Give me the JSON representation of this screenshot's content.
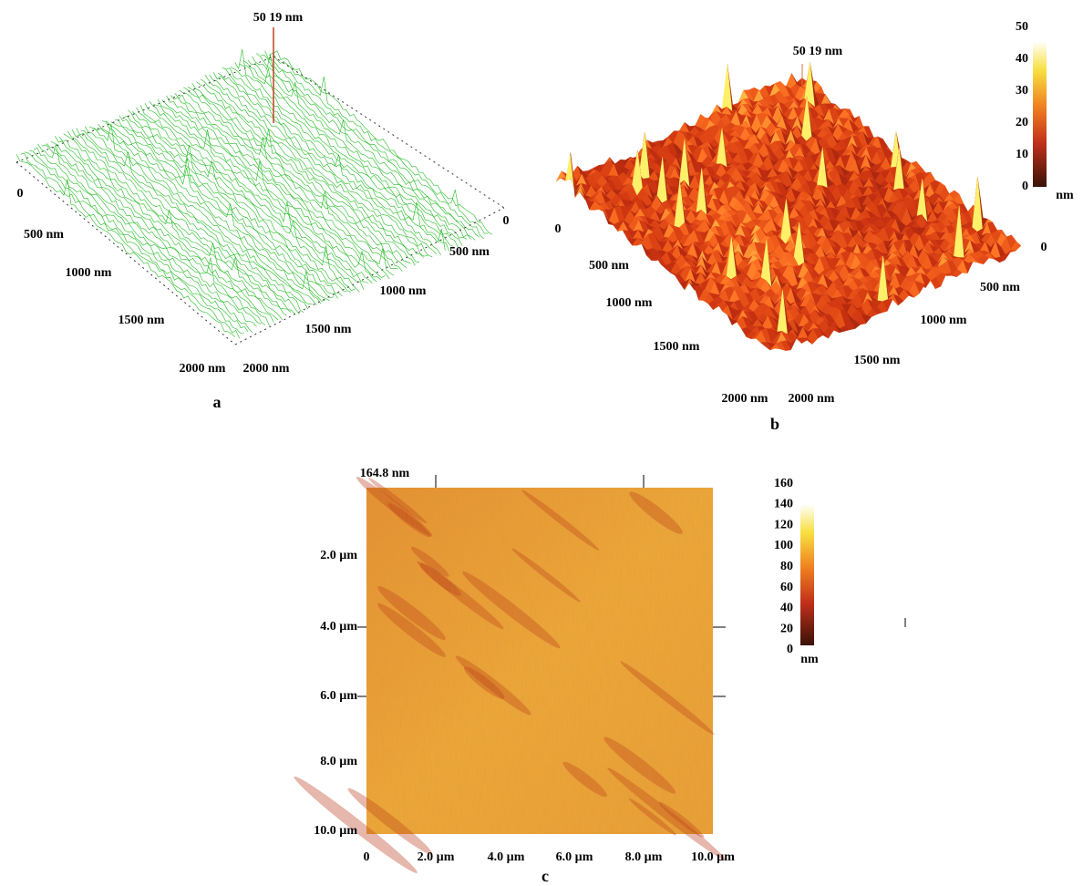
{
  "panels": [
    {
      "label": "a",
      "peak_label": "50 19 nm",
      "left_axis": [
        "0",
        "500 nm",
        "1000 nm",
        "1500 nm",
        "2000 nm"
      ],
      "right_axis": [
        "0",
        "500 nm",
        "1000 nm",
        "1500 nm",
        "2000 nm"
      ]
    },
    {
      "label": "b",
      "peak_label": "50 19 nm",
      "left_axis": [
        "0",
        "500 nm",
        "1000 nm",
        "1500 nm",
        "2000 nm"
      ],
      "right_axis": [
        "0",
        "500 nm",
        "1000 nm",
        "1500 nm",
        "2000 nm"
      ],
      "colorbar": {
        "ticks": [
          0,
          10,
          20,
          30,
          40,
          50
        ],
        "unit": "nm"
      }
    },
    {
      "label": "c",
      "corner_label": "164.8 nm",
      "left_axis": [
        "2.0 µm",
        "4.0 µm",
        "6.0 µm",
        "8.0 µm",
        "10.0 µm"
      ],
      "bottom_axis": [
        "0",
        "2.0 µm",
        "4.0 µm",
        "6.0 µm",
        "8.0 µm",
        "10.0 µm"
      ],
      "colorbar": {
        "ticks": [
          0,
          20,
          40,
          60,
          80,
          100,
          120,
          140,
          160
        ],
        "unit": "nm"
      }
    }
  ]
}
